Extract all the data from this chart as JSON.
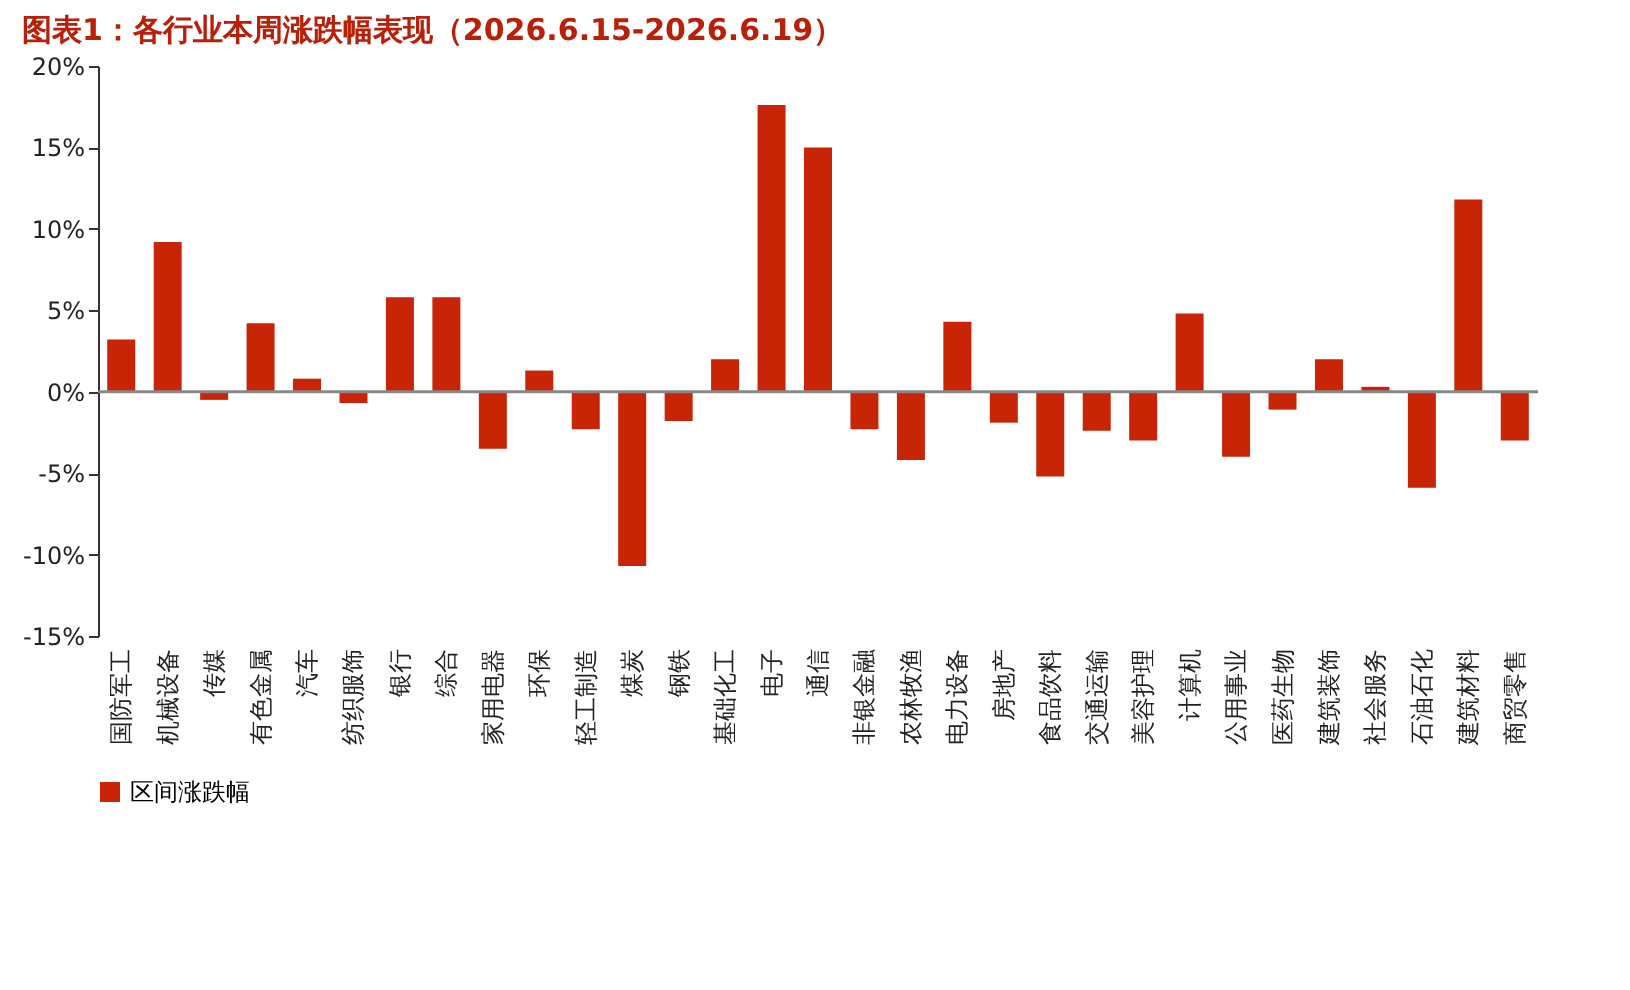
{
  "chart_data": {
    "type": "bar",
    "title": "图表1：各行业本周涨跌幅表现（2026.6.15-2026.6.19）",
    "categories": [
      "国防军工",
      "机械设备",
      "传媒",
      "有色金属",
      "汽车",
      "纺织服饰",
      "银行",
      "综合",
      "家用电器",
      "环保",
      "轻工制造",
      "煤炭",
      "钢铁",
      "基础化工",
      "电子",
      "通信",
      "非银金融",
      "农林牧渔",
      "电力设备",
      "房地产",
      "食品饮料",
      "交通运输",
      "美容护理",
      "计算机",
      "公用事业",
      "医药生物",
      "建筑装饰",
      "社会服务",
      "石油石化",
      "建筑材料",
      "商贸零售"
    ],
    "series": [
      {
        "name": "区间涨跌幅",
        "color": "#c82406",
        "values": [
          3.2,
          9.2,
          -0.5,
          4.2,
          0.8,
          -0.7,
          5.8,
          5.8,
          -3.5,
          1.3,
          -2.3,
          -10.7,
          -1.8,
          2.0,
          17.6,
          15.0,
          -2.3,
          -4.2,
          4.3,
          -1.9,
          -5.2,
          -2.4,
          -3.0,
          4.8,
          -4.0,
          -1.1,
          2.0,
          0.3,
          -5.9,
          11.8,
          -3.0
        ]
      }
    ],
    "ylim": [
      -15,
      20
    ],
    "yticks": [
      {
        "value": -15,
        "label": "-15%"
      },
      {
        "value": -10,
        "label": "-10%"
      },
      {
        "value": -5,
        "label": "-5%"
      },
      {
        "value": 0,
        "label": "0%"
      },
      {
        "value": 5,
        "label": "5%"
      },
      {
        "value": 10,
        "label": "10%"
      },
      {
        "value": 15,
        "label": "15%"
      },
      {
        "value": 20,
        "label": "20%"
      }
    ],
    "ref_lines": [
      {
        "axis": "y",
        "value": 0,
        "color": "#888888"
      }
    ],
    "grid": false,
    "legend": "bottom"
  }
}
